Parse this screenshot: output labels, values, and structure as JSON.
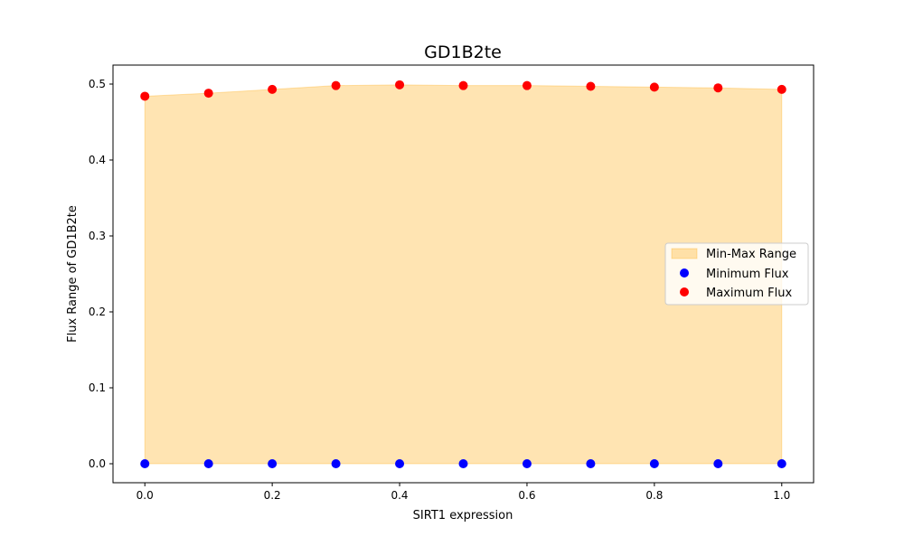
{
  "chart_data": {
    "type": "scatter",
    "title": "GD1B2te",
    "xlabel": "SIRT1 expression",
    "ylabel": "Flux Range of GD1B2te",
    "x": [
      0.0,
      0.1,
      0.2,
      0.3,
      0.4,
      0.5,
      0.6,
      0.7,
      0.8,
      0.9,
      1.0
    ],
    "series": [
      {
        "name": "Minimum Flux",
        "color": "#0000ff",
        "values": [
          0,
          0,
          0,
          0,
          0,
          0,
          0,
          0,
          0,
          0,
          0
        ]
      },
      {
        "name": "Maximum Flux",
        "color": "#ff0000",
        "values": [
          0.484,
          0.488,
          0.493,
          0.498,
          0.499,
          0.498,
          0.498,
          0.497,
          0.496,
          0.495,
          0.493
        ]
      }
    ],
    "fill": {
      "name": "Min-Max Range",
      "color": "#ffa500",
      "alpha": 0.3
    },
    "xlim": [
      -0.05,
      1.05
    ],
    "ylim": [
      -0.025,
      0.525
    ],
    "xticks": [
      "0.0",
      "0.2",
      "0.4",
      "0.6",
      "0.8",
      "1.0"
    ],
    "xtick_values": [
      0.0,
      0.2,
      0.4,
      0.6,
      0.8,
      1.0
    ],
    "yticks": [
      "0.0",
      "0.1",
      "0.2",
      "0.3",
      "0.4",
      "0.5"
    ],
    "ytick_values": [
      0.0,
      0.1,
      0.2,
      0.3,
      0.4,
      0.5
    ],
    "legend": "center-right",
    "grid": false
  }
}
